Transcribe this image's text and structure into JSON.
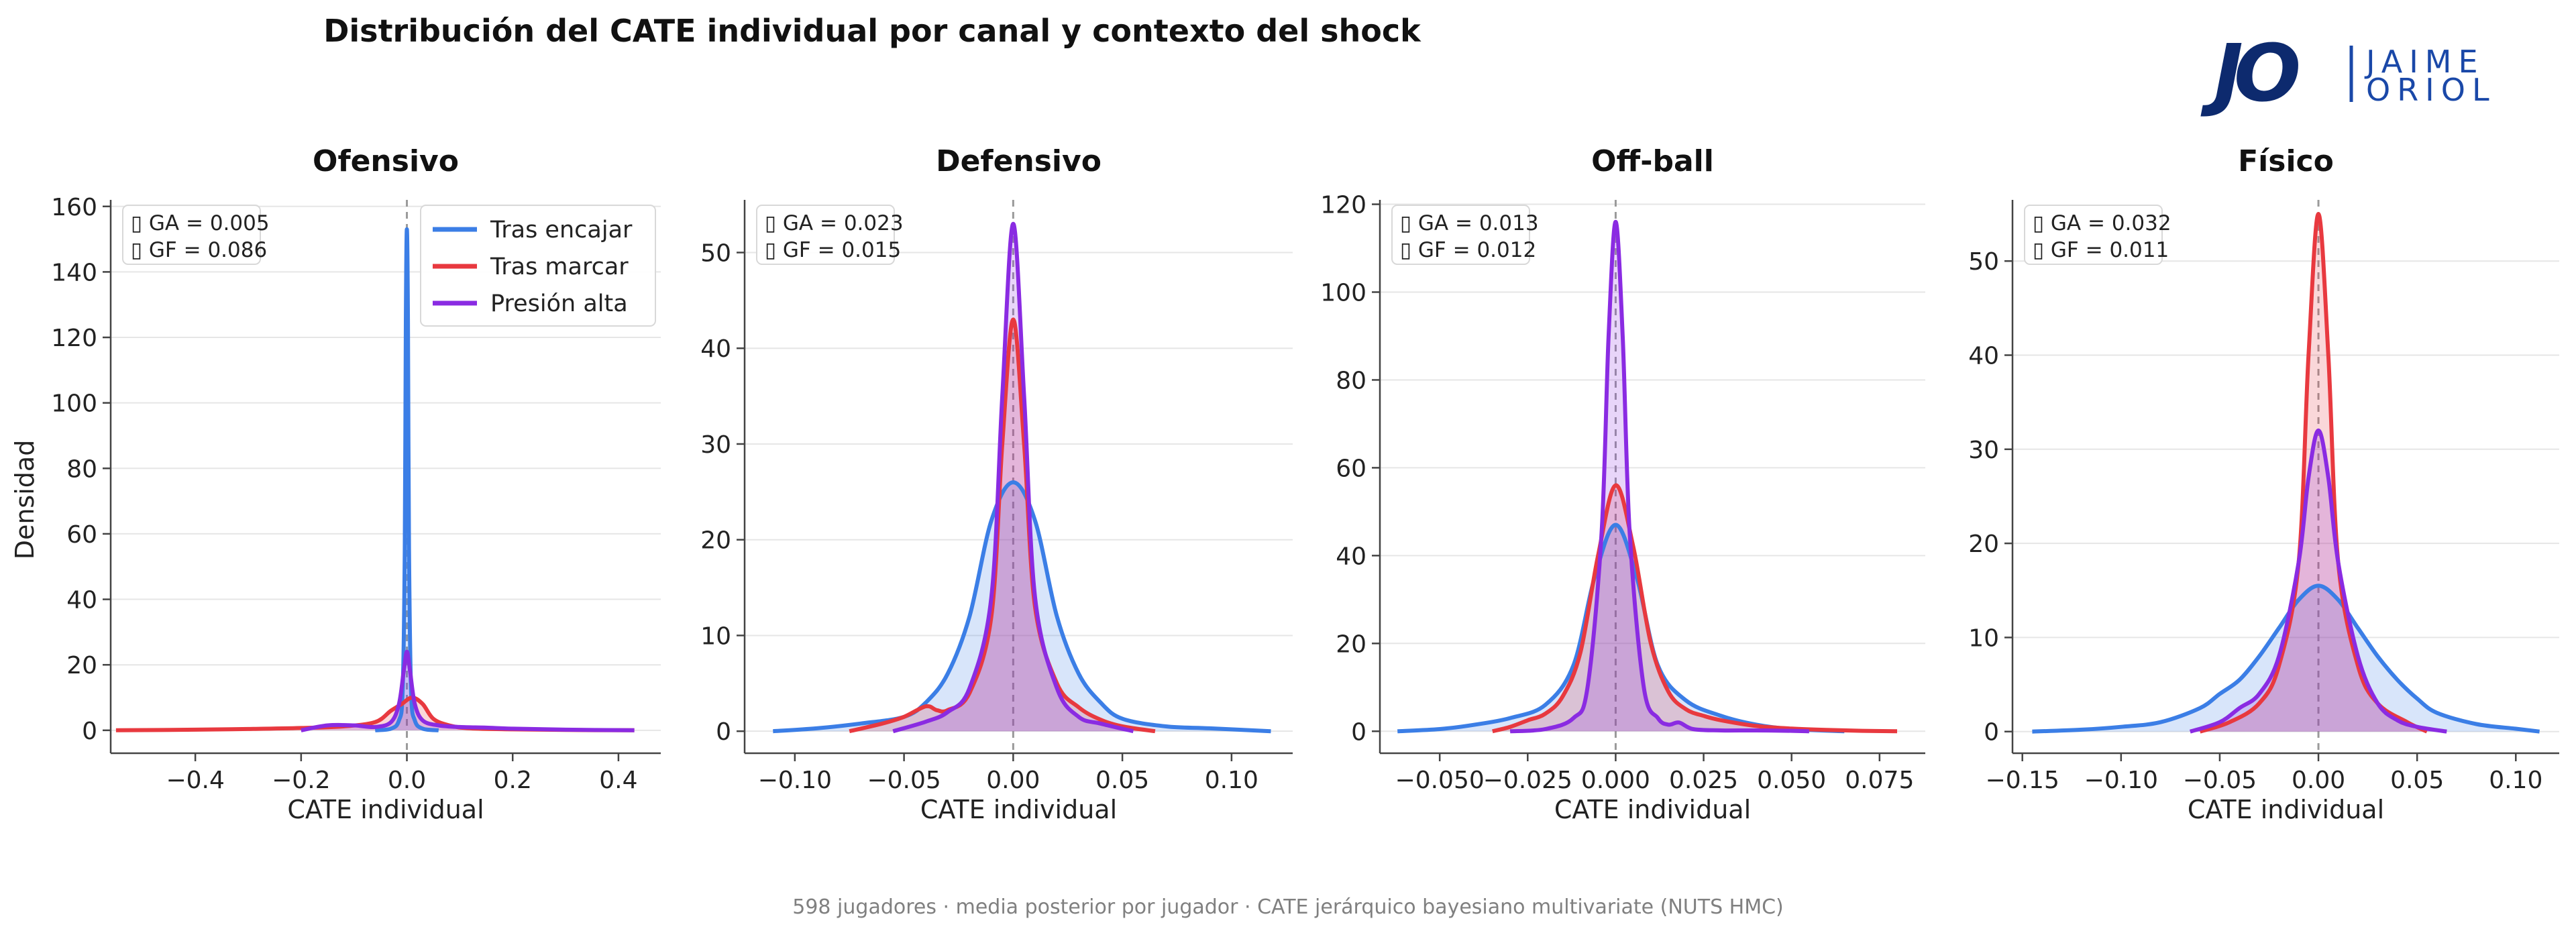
{
  "figure": {
    "title": "Distribución del CATE individual por canal y contexto del shock",
    "footnote": "598 jugadores · media posterior por jugador · CATE jerárquico bayesiano multivariate (NUTS HMC)",
    "ylabel": "Densidad"
  },
  "logo": {
    "monogram": "JO",
    "line1": "JAIME",
    "line2": "ORIOL"
  },
  "colors": {
    "tras_encajar": "#3b7ee6",
    "tras_marcar": "#e8393f",
    "presion_alta": "#8a2be2",
    "grid": "#e6e6e6",
    "axis": "#444444",
    "zero_line": "#9a9a9a",
    "annotation_border": "#d8d8d8"
  },
  "legend": {
    "location": "upper right of first panel",
    "entries": [
      {
        "name": "Tras encajar",
        "color_key": "tras_encajar"
      },
      {
        "name": "Tras marcar",
        "color_key": "tras_marcar"
      },
      {
        "name": "Presión alta",
        "color_key": "presion_alta"
      }
    ]
  },
  "chart_data": [
    {
      "type": "area",
      "title": "Ofensivo",
      "xlabel": "CATE individual",
      "ylabel": "Densidad",
      "xlim": [
        -0.56,
        0.48
      ],
      "ylim": [
        -7,
        162
      ],
      "xticks": [
        -0.4,
        -0.2,
        0.0,
        0.2,
        0.4
      ],
      "xtick_labels": [
        "−0.4",
        "−0.2",
        "0.0",
        "0.2",
        "0.4"
      ],
      "yticks": [
        0,
        20,
        40,
        60,
        80,
        100,
        120,
        140,
        160
      ],
      "ytick_labels": [
        "0",
        "20",
        "40",
        "60",
        "80",
        "100",
        "120",
        "140",
        "160"
      ],
      "annotations": [
        "▯ GA = 0.005",
        "▯ GF = 0.086"
      ],
      "series": [
        {
          "name": "Tras encajar",
          "color_key": "tras_encajar",
          "x": [
            -0.06,
            -0.03,
            -0.015,
            -0.008,
            -0.004,
            -0.002,
            0,
            0.002,
            0.004,
            0.008,
            0.015,
            0.03,
            0.06
          ],
          "y": [
            0,
            0.5,
            3,
            12,
            55,
            125,
            153,
            125,
            55,
            12,
            3,
            0.5,
            0
          ]
        },
        {
          "name": "Tras marcar",
          "color_key": "tras_marcar",
          "x": [
            -0.55,
            -0.4,
            -0.3,
            -0.2,
            -0.12,
            -0.06,
            -0.03,
            -0.01,
            0.01,
            0.03,
            0.05,
            0.08,
            0.12,
            0.2,
            0.3,
            0.43
          ],
          "y": [
            0,
            0.2,
            0.4,
            0.7,
            1.2,
            2.5,
            6,
            8,
            10,
            8,
            3.5,
            1.5,
            0.6,
            0.3,
            0.1,
            0
          ]
        },
        {
          "name": "Presión alta",
          "color_key": "presion_alta",
          "x": [
            -0.2,
            -0.15,
            -0.1,
            -0.06,
            -0.03,
            -0.015,
            -0.006,
            0,
            0.006,
            0.015,
            0.03,
            0.06,
            0.1,
            0.15,
            0.2,
            0.3,
            0.43
          ],
          "y": [
            0,
            1.5,
            1.5,
            1.0,
            2.5,
            8,
            18,
            24,
            18,
            8,
            3,
            1.5,
            1.0,
            0.8,
            0.5,
            0.2,
            0
          ]
        }
      ]
    },
    {
      "type": "area",
      "title": "Defensivo",
      "xlabel": "CATE individual",
      "xlim": [
        -0.123,
        0.128
      ],
      "ylim": [
        -2.3,
        55.5
      ],
      "xticks": [
        -0.1,
        -0.05,
        0.0,
        0.05,
        0.1
      ],
      "xtick_labels": [
        "−0.10",
        "−0.05",
        "0.00",
        "0.05",
        "0.10"
      ],
      "yticks": [
        0,
        10,
        20,
        30,
        40,
        50
      ],
      "ytick_labels": [
        "0",
        "10",
        "20",
        "30",
        "40",
        "50"
      ],
      "annotations": [
        "▯ GA = 0.023",
        "▯ GF = 0.015"
      ],
      "series": [
        {
          "name": "Tras encajar",
          "color_key": "tras_encajar",
          "x": [
            -0.11,
            -0.09,
            -0.07,
            -0.05,
            -0.04,
            -0.03,
            -0.02,
            -0.01,
            0,
            0.01,
            0.02,
            0.03,
            0.04,
            0.05,
            0.07,
            0.09,
            0.118
          ],
          "y": [
            0,
            0.3,
            0.8,
            1.5,
            3,
            6,
            12,
            22,
            26,
            22,
            12,
            6,
            3,
            1.3,
            0.5,
            0.3,
            0
          ]
        },
        {
          "name": "Tras marcar",
          "color_key": "tras_marcar",
          "x": [
            -0.075,
            -0.06,
            -0.05,
            -0.04,
            -0.035,
            -0.03,
            -0.02,
            -0.01,
            -0.005,
            0,
            0.005,
            0.01,
            0.02,
            0.03,
            0.04,
            0.05,
            0.065
          ],
          "y": [
            0,
            0.8,
            1.5,
            2.6,
            2.2,
            2.2,
            4,
            12,
            30,
            43,
            30,
            13,
            5,
            2.5,
            1.2,
            0.5,
            0
          ]
        },
        {
          "name": "Presión alta",
          "color_key": "presion_alta",
          "x": [
            -0.055,
            -0.04,
            -0.03,
            -0.02,
            -0.01,
            -0.005,
            0,
            0.005,
            0.01,
            0.02,
            0.03,
            0.04,
            0.055
          ],
          "y": [
            0,
            1.0,
            2.0,
            4.5,
            14,
            35,
            53,
            35,
            14,
            4.5,
            1.5,
            0.8,
            0
          ]
        }
      ]
    },
    {
      "type": "area",
      "title": "Off-ball",
      "xlabel": "CATE individual",
      "xlim": [
        -0.067,
        0.088
      ],
      "ylim": [
        -5,
        121
      ],
      "xticks": [
        -0.05,
        -0.025,
        0.0,
        0.025,
        0.05,
        0.075
      ],
      "xtick_labels": [
        "−0.050",
        "−0.025",
        "0.000",
        "0.025",
        "0.050",
        "0.075"
      ],
      "yticks": [
        0,
        20,
        40,
        60,
        80,
        100,
        120
      ],
      "ytick_labels": [
        "0",
        "20",
        "40",
        "60",
        "80",
        "100",
        "120"
      ],
      "annotations": [
        "▯ GA = 0.013",
        "▯ GF = 0.012"
      ],
      "series": [
        {
          "name": "Tras encajar",
          "color_key": "tras_encajar",
          "x": [
            -0.062,
            -0.05,
            -0.04,
            -0.03,
            -0.02,
            -0.012,
            -0.006,
            0,
            0.006,
            0.012,
            0.02,
            0.03,
            0.04,
            0.05,
            0.065
          ],
          "y": [
            0,
            0.5,
            1.5,
            3,
            6,
            15,
            35,
            47,
            35,
            15,
            7,
            3.5,
            1.5,
            0.5,
            0
          ]
        },
        {
          "name": "Tras marcar",
          "color_key": "tras_marcar",
          "x": [
            -0.035,
            -0.03,
            -0.025,
            -0.02,
            -0.015,
            -0.01,
            -0.005,
            0,
            0.005,
            0.01,
            0.015,
            0.02,
            0.025,
            0.03,
            0.04,
            0.05,
            0.06,
            0.07,
            0.08
          ],
          "y": [
            0,
            1.0,
            2.5,
            4,
            8,
            18,
            40,
            56,
            42,
            20,
            9,
            5,
            3.5,
            2.5,
            1.2,
            0.6,
            0.3,
            0.1,
            0
          ]
        },
        {
          "name": "Presión alta",
          "color_key": "presion_alta",
          "x": [
            -0.03,
            -0.02,
            -0.012,
            -0.008,
            -0.004,
            -0.002,
            0,
            0.002,
            0.004,
            0.008,
            0.012,
            0.015,
            0.018,
            0.022,
            0.03,
            0.04,
            0.05,
            0.055
          ],
          "y": [
            0,
            0.5,
            3,
            10,
            45,
            90,
            116,
            90,
            45,
            10,
            3,
            1.5,
            2,
            0.5,
            0.2,
            0.2,
            0.1,
            0
          ]
        }
      ]
    },
    {
      "type": "area",
      "title": "Físico",
      "xlabel": "CATE individual",
      "xlim": [
        -0.155,
        0.122
      ],
      "ylim": [
        -2.3,
        56.5
      ],
      "xticks": [
        -0.15,
        -0.1,
        -0.05,
        0.0,
        0.05,
        0.1
      ],
      "xtick_labels": [
        "−0.15",
        "−0.10",
        "−0.05",
        "0.00",
        "0.05",
        "0.10"
      ],
      "yticks": [
        0,
        10,
        20,
        30,
        40,
        50
      ],
      "ytick_labels": [
        "0",
        "10",
        "20",
        "30",
        "40",
        "50"
      ],
      "annotations": [
        "▯ GA = 0.032",
        "▯ GF = 0.011"
      ],
      "series": [
        {
          "name": "Tras encajar",
          "color_key": "tras_encajar",
          "x": [
            -0.145,
            -0.12,
            -0.1,
            -0.08,
            -0.06,
            -0.05,
            -0.04,
            -0.03,
            -0.02,
            -0.01,
            0,
            0.01,
            0.02,
            0.03,
            0.04,
            0.05,
            0.06,
            0.08,
            0.1,
            0.112
          ],
          "y": [
            0,
            0.2,
            0.5,
            1.0,
            2.5,
            4,
            5.5,
            8,
            11,
            14,
            15.5,
            14,
            11,
            8,
            5.5,
            3.5,
            2,
            0.8,
            0.3,
            0
          ]
        },
        {
          "name": "Tras marcar",
          "color_key": "tras_marcar",
          "x": [
            -0.06,
            -0.045,
            -0.03,
            -0.02,
            -0.01,
            -0.005,
            0,
            0.005,
            0.01,
            0.02,
            0.03,
            0.045,
            0.055
          ],
          "y": [
            0,
            1.0,
            3,
            7,
            18,
            40,
            55,
            40,
            18,
            7,
            3,
            1,
            0
          ]
        },
        {
          "name": "Presión alta",
          "color_key": "presion_alta",
          "x": [
            -0.065,
            -0.05,
            -0.04,
            -0.03,
            -0.02,
            -0.01,
            -0.005,
            0,
            0.005,
            0.01,
            0.02,
            0.03,
            0.04,
            0.05,
            0.065
          ],
          "y": [
            0,
            1.0,
            2.5,
            4,
            8,
            18,
            27,
            32,
            27,
            18,
            8,
            3,
            1.2,
            0.5,
            0
          ]
        }
      ]
    }
  ]
}
